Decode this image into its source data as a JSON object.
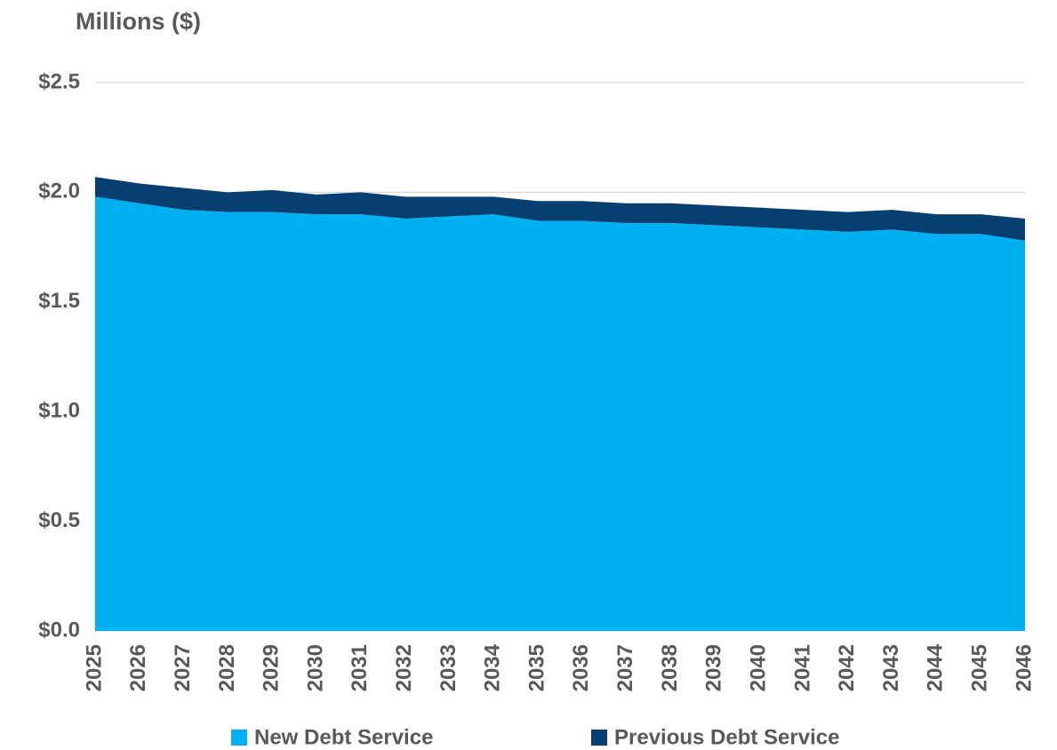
{
  "chart_data": {
    "type": "area",
    "stacked": true,
    "y_label": "Millions ($)",
    "categories": [
      "2025",
      "2026",
      "2027",
      "2028",
      "2029",
      "2030",
      "2031",
      "2032",
      "2033",
      "2034",
      "2035",
      "2036",
      "2037",
      "2038",
      "2039",
      "2040",
      "2041",
      "2042",
      "2043",
      "2044",
      "2045",
      "2046"
    ],
    "series": [
      {
        "name": "New Debt Service",
        "color": "#00B0F0",
        "values": [
          1.98,
          1.95,
          1.92,
          1.91,
          1.91,
          1.9,
          1.9,
          1.88,
          1.89,
          1.9,
          1.87,
          1.87,
          1.86,
          1.86,
          1.85,
          1.84,
          1.83,
          1.82,
          1.83,
          1.81,
          1.81,
          1.78
        ]
      },
      {
        "name": "Previous Debt Service",
        "color": "#073F72",
        "values": [
          0.09,
          0.09,
          0.1,
          0.09,
          0.1,
          0.09,
          0.1,
          0.1,
          0.09,
          0.08,
          0.09,
          0.09,
          0.09,
          0.09,
          0.09,
          0.09,
          0.09,
          0.09,
          0.09,
          0.09,
          0.09,
          0.1
        ]
      }
    ],
    "ylim": [
      0,
      2.5
    ],
    "yticks": [
      {
        "value": 0,
        "label": "$0.0"
      },
      {
        "value": 0.5,
        "label": "$0.5"
      },
      {
        "value": 1,
        "label": "$1.0"
      },
      {
        "value": 1.5,
        "label": "$1.5"
      },
      {
        "value": 2,
        "label": "$2.0"
      },
      {
        "value": 2.5,
        "label": "$2.5"
      }
    ],
    "grid": true,
    "legend": "bottom"
  }
}
